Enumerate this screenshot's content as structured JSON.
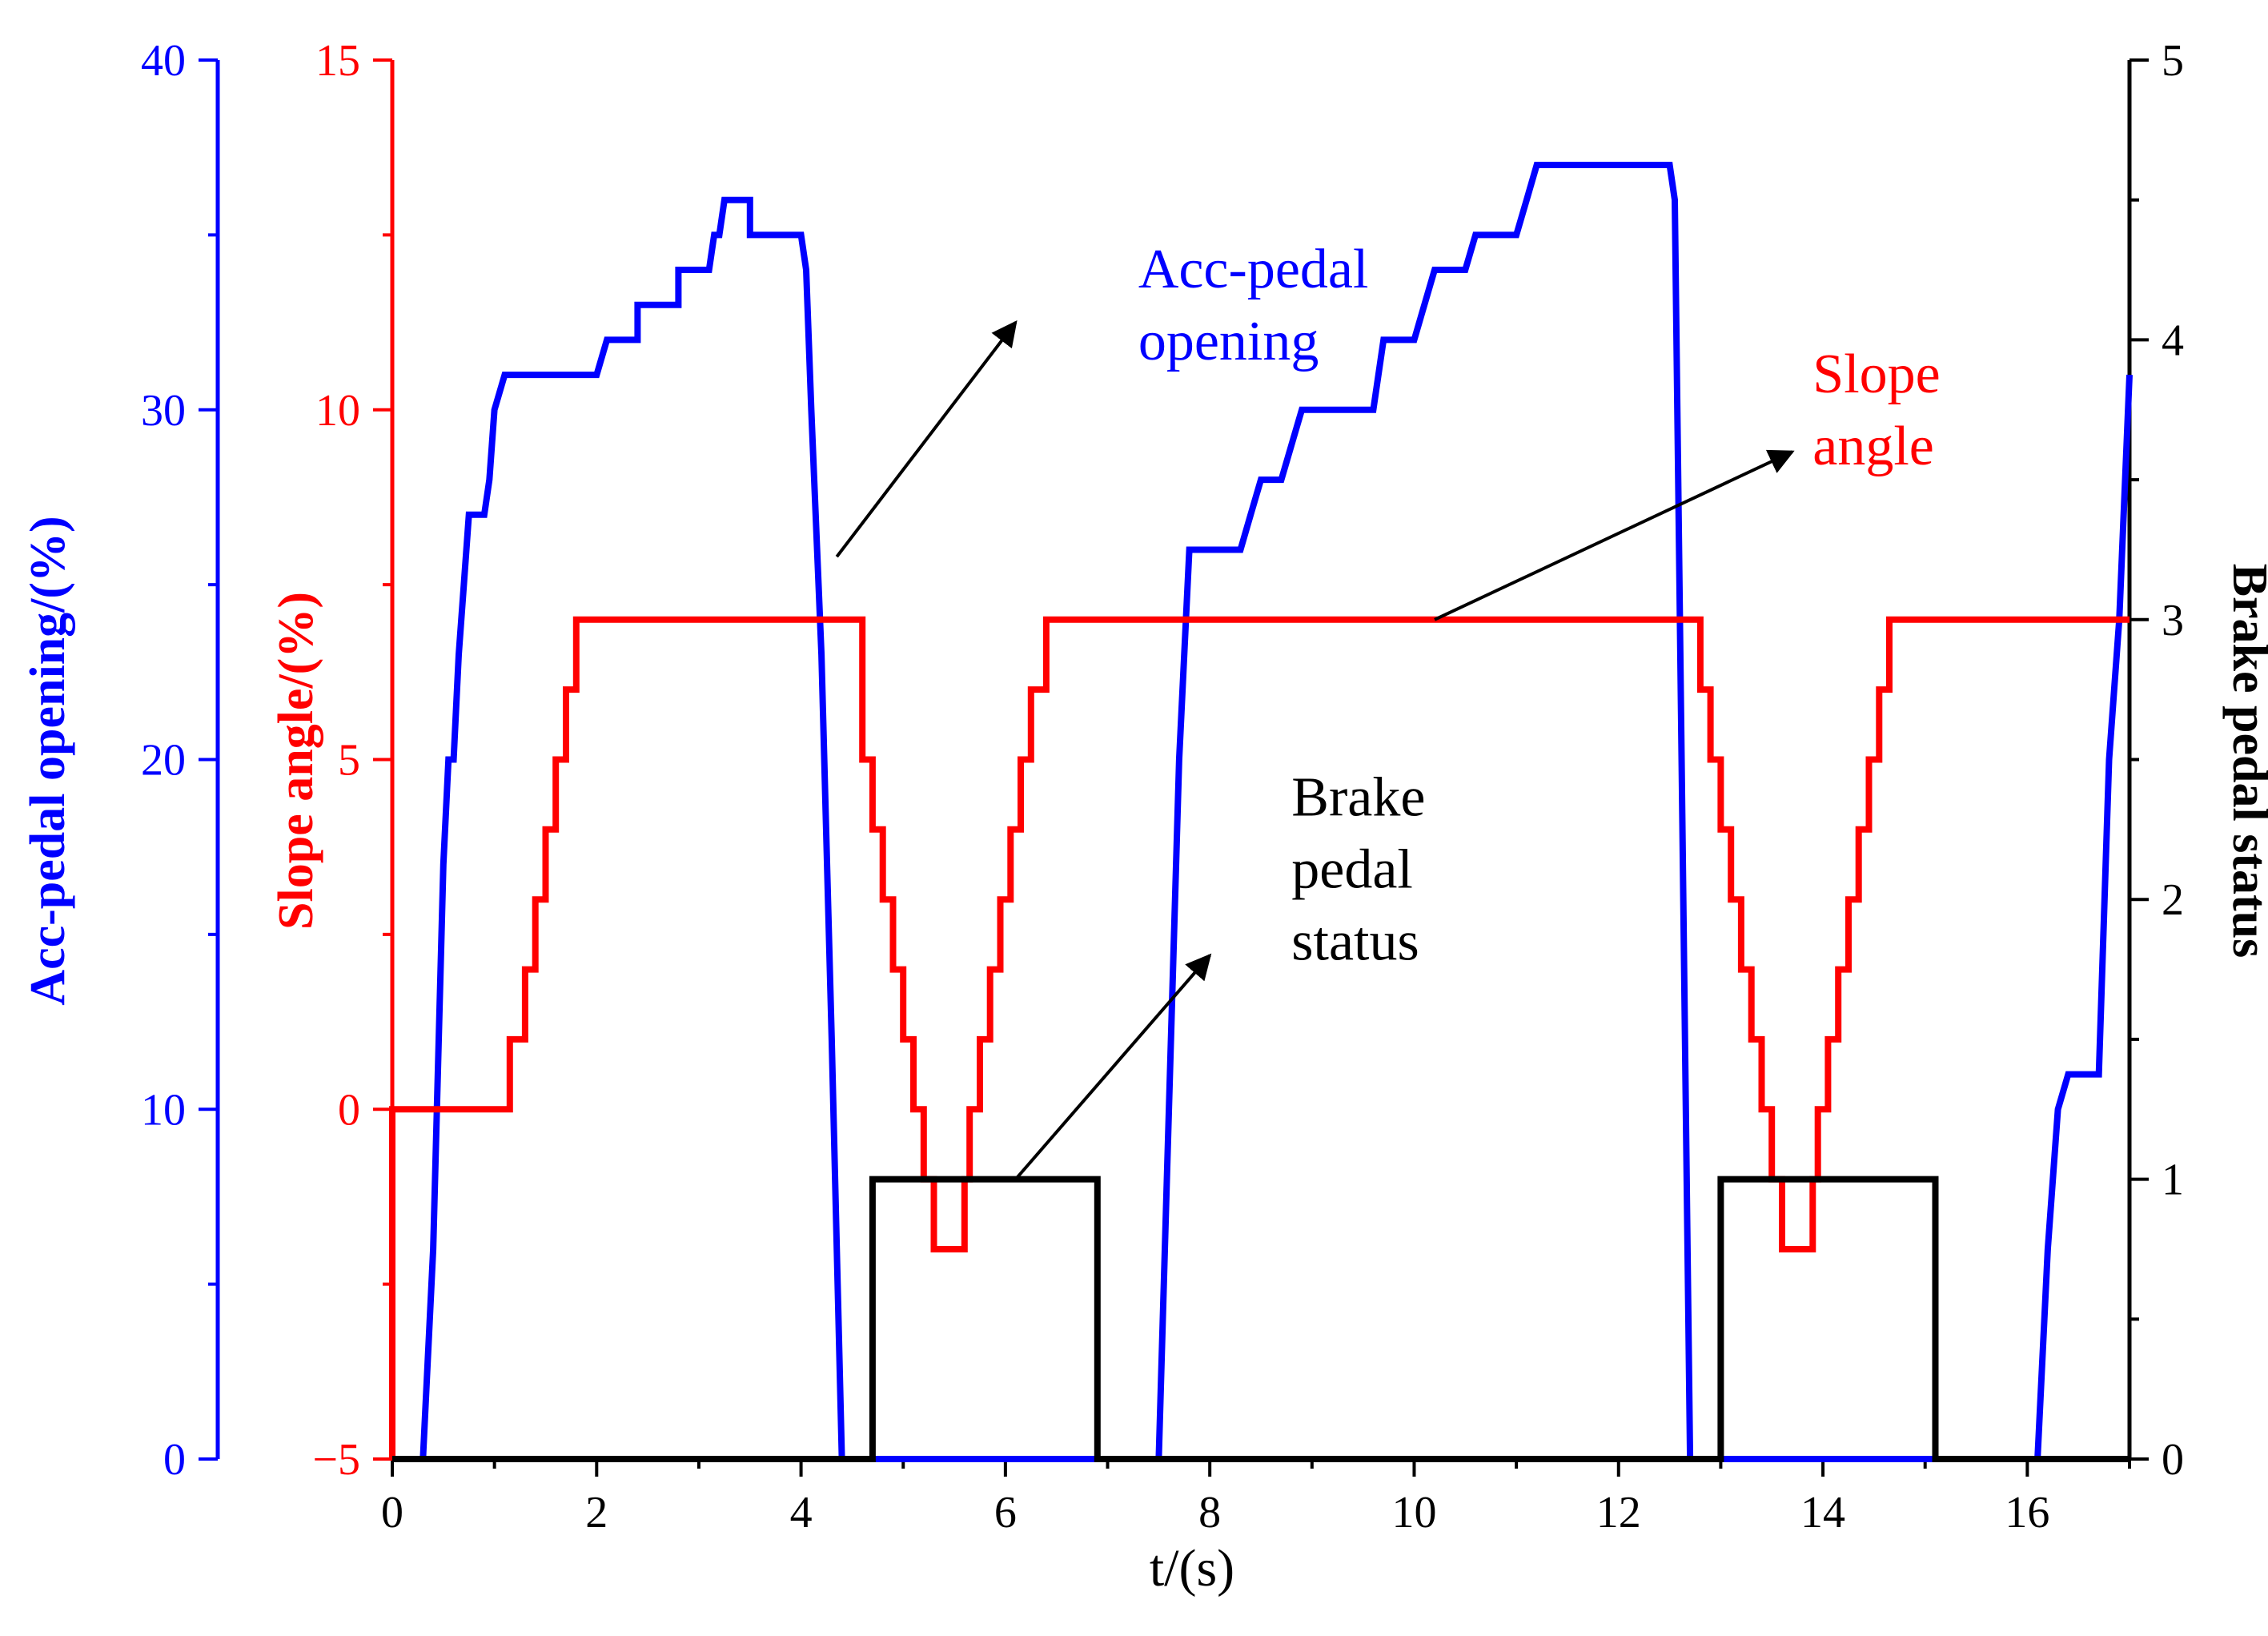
{
  "chart_data": {
    "type": "line",
    "xlabel": "t/(s)",
    "xlim": [
      0,
      17
    ],
    "xticks": [
      0,
      2,
      4,
      6,
      8,
      10,
      12,
      14,
      16
    ],
    "grid": false,
    "legend": "none",
    "axes": [
      {
        "id": "acc",
        "label": "Acc-pedal opening/(%)",
        "color": "#0000ff",
        "ylim": [
          0,
          40
        ],
        "ticks": [
          0,
          10,
          20,
          30,
          40
        ]
      },
      {
        "id": "slope",
        "label": "Slope angle/(%)",
        "color": "#ff0000",
        "ylim": [
          -5,
          15
        ],
        "ticks": [
          -5,
          0,
          5,
          10,
          15
        ],
        "tick_labels": [
          "−5",
          "0",
          "5",
          "10",
          "15"
        ]
      },
      {
        "id": "brake",
        "label": "Brake pedal status",
        "color": "#000000",
        "ylim": [
          0,
          5
        ],
        "ticks": [
          0,
          1,
          2,
          3,
          4,
          5
        ]
      }
    ],
    "series": [
      {
        "axis": "acc",
        "color": "#0000ff",
        "points": [
          [
            0.3,
            0
          ],
          [
            0.4,
            6
          ],
          [
            0.5,
            17
          ],
          [
            0.55,
            20
          ],
          [
            0.6,
            20
          ],
          [
            0.65,
            23
          ],
          [
            0.7,
            25
          ],
          [
            0.75,
            27
          ],
          [
            0.9,
            27
          ],
          [
            0.95,
            28
          ],
          [
            1.0,
            30
          ],
          [
            1.1,
            31
          ],
          [
            2.0,
            31
          ],
          [
            2.1,
            32
          ],
          [
            2.4,
            32
          ],
          [
            2.4,
            33
          ],
          [
            2.8,
            33
          ],
          [
            2.8,
            34
          ],
          [
            3.1,
            34
          ],
          [
            3.15,
            35
          ],
          [
            3.2,
            35
          ],
          [
            3.25,
            36
          ],
          [
            3.5,
            36
          ],
          [
            3.5,
            35
          ],
          [
            4.0,
            35
          ],
          [
            4.05,
            34
          ],
          [
            4.1,
            30
          ],
          [
            4.2,
            23
          ],
          [
            4.3,
            12
          ],
          [
            4.4,
            0
          ],
          [
            7.5,
            0
          ],
          [
            7.6,
            10
          ],
          [
            7.7,
            20
          ],
          [
            7.8,
            26
          ],
          [
            8.3,
            26
          ],
          [
            8.4,
            27
          ],
          [
            8.5,
            28
          ],
          [
            8.7,
            28
          ],
          [
            8.8,
            29
          ],
          [
            8.9,
            30
          ],
          [
            9.6,
            30
          ],
          [
            9.7,
            32
          ],
          [
            10.0,
            32
          ],
          [
            10.1,
            33
          ],
          [
            10.2,
            34
          ],
          [
            10.5,
            34
          ],
          [
            10.6,
            35
          ],
          [
            11.0,
            35
          ],
          [
            11.1,
            36
          ],
          [
            11.2,
            37
          ],
          [
            12.5,
            37
          ],
          [
            12.55,
            36
          ],
          [
            12.6,
            24
          ],
          [
            12.7,
            0
          ],
          [
            16.1,
            0
          ],
          [
            16.2,
            6
          ],
          [
            16.3,
            10
          ],
          [
            16.4,
            11
          ],
          [
            16.7,
            11
          ],
          [
            16.8,
            20
          ],
          [
            16.9,
            24
          ],
          [
            17.0,
            31
          ]
        ]
      },
      {
        "axis": "slope",
        "color": "#ff0000",
        "points": [
          [
            0,
            -5
          ],
          [
            0,
            0
          ],
          [
            1.15,
            0
          ],
          [
            1.15,
            1
          ],
          [
            1.3,
            1
          ],
          [
            1.3,
            2
          ],
          [
            1.4,
            2
          ],
          [
            1.4,
            3
          ],
          [
            1.5,
            3
          ],
          [
            1.5,
            4
          ],
          [
            1.6,
            4
          ],
          [
            1.6,
            5
          ],
          [
            1.7,
            5
          ],
          [
            1.7,
            6
          ],
          [
            1.8,
            6
          ],
          [
            1.8,
            7
          ],
          [
            4.6,
            7
          ],
          [
            4.6,
            5
          ],
          [
            4.7,
            5
          ],
          [
            4.7,
            4
          ],
          [
            4.8,
            4
          ],
          [
            4.8,
            3
          ],
          [
            4.9,
            3
          ],
          [
            4.9,
            2
          ],
          [
            5.0,
            2
          ],
          [
            5.0,
            1
          ],
          [
            5.1,
            1
          ],
          [
            5.1,
            0
          ],
          [
            5.2,
            0
          ],
          [
            5.2,
            -1
          ],
          [
            5.3,
            -1
          ],
          [
            5.3,
            -2
          ],
          [
            5.6,
            -2
          ],
          [
            5.6,
            -1
          ],
          [
            5.65,
            -1
          ],
          [
            5.65,
            0
          ],
          [
            5.75,
            0
          ],
          [
            5.75,
            1
          ],
          [
            5.85,
            1
          ],
          [
            5.85,
            2
          ],
          [
            5.95,
            2
          ],
          [
            5.95,
            3
          ],
          [
            6.05,
            3
          ],
          [
            6.05,
            4
          ],
          [
            6.15,
            4
          ],
          [
            6.15,
            5
          ],
          [
            6.25,
            5
          ],
          [
            6.25,
            6
          ],
          [
            6.4,
            6
          ],
          [
            6.4,
            7
          ],
          [
            12.8,
            7
          ],
          [
            12.8,
            6
          ],
          [
            12.9,
            6
          ],
          [
            12.9,
            5
          ],
          [
            13.0,
            5
          ],
          [
            13.0,
            4
          ],
          [
            13.1,
            4
          ],
          [
            13.1,
            3
          ],
          [
            13.2,
            3
          ],
          [
            13.2,
            2
          ],
          [
            13.3,
            2
          ],
          [
            13.3,
            1
          ],
          [
            13.4,
            1
          ],
          [
            13.4,
            0
          ],
          [
            13.5,
            0
          ],
          [
            13.5,
            -1
          ],
          [
            13.6,
            -1
          ],
          [
            13.6,
            -2
          ],
          [
            13.9,
            -2
          ],
          [
            13.9,
            -1
          ],
          [
            13.95,
            -1
          ],
          [
            13.95,
            0
          ],
          [
            14.05,
            0
          ],
          [
            14.05,
            1
          ],
          [
            14.15,
            1
          ],
          [
            14.15,
            2
          ],
          [
            14.25,
            2
          ],
          [
            14.25,
            3
          ],
          [
            14.35,
            3
          ],
          [
            14.35,
            4
          ],
          [
            14.45,
            4
          ],
          [
            14.45,
            5
          ],
          [
            14.55,
            5
          ],
          [
            14.55,
            6
          ],
          [
            14.65,
            6
          ],
          [
            14.65,
            7
          ],
          [
            17,
            7
          ]
        ]
      },
      {
        "axis": "brake",
        "color": "#000000",
        "points": [
          [
            0,
            0
          ],
          [
            4.7,
            0
          ],
          [
            4.7,
            1
          ],
          [
            6.9,
            1
          ],
          [
            6.9,
            0
          ],
          [
            13.0,
            0
          ],
          [
            13.0,
            1
          ],
          [
            15.1,
            1
          ],
          [
            15.1,
            0
          ],
          [
            17,
            0
          ]
        ]
      }
    ],
    "annotations": [
      {
        "id": "acc",
        "lines": [
          "Acc-pedal",
          "opening"
        ],
        "color": "#0000ff",
        "at": [
          7.3,
          33.5
        ],
        "arrow_from": [
          4.35,
          25.8
        ],
        "arrow_to": [
          6.1,
          32.5
        ]
      },
      {
        "id": "slope",
        "lines": [
          "Slope",
          "angle"
        ],
        "color": "#ff0000",
        "at": [
          13.9,
          30.5
        ],
        "arrow_from": [
          10.2,
          24.0
        ],
        "arrow_to": [
          13.7,
          28.8
        ]
      },
      {
        "id": "brake",
        "lines": [
          "Brake",
          "pedal",
          "status"
        ],
        "color": "#000000",
        "at": [
          8.8,
          2.3
        ],
        "arrow_from": [
          6.1,
          1.0
        ],
        "arrow_to": [
          8.0,
          1.8
        ]
      }
    ]
  }
}
